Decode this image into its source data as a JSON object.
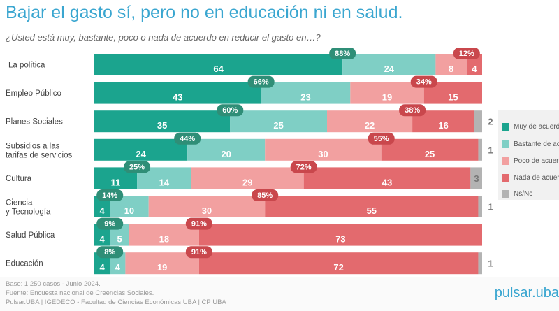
{
  "title": "Bajar el gasto sí, pero no en educación ni en salud.",
  "subtitle": "¿Usted está muy, bastante, poco o nada de acuerdo en reducir el gasto en…?",
  "chart_data": {
    "type": "bar",
    "orientation": "horizontal-stacked-100",
    "categories": [
      "La política",
      "Empleo Público",
      "Planes Sociales",
      "Subsidios a las tarifas de servicios",
      "Cultura",
      "Ciencia y Tecnología",
      "Salud Pública",
      "Educación"
    ],
    "series": [
      {
        "name": "Muy de acuerdo",
        "color": "#1ba48e",
        "values": [
          64,
          43,
          35,
          24,
          11,
          4,
          4,
          4
        ]
      },
      {
        "name": "Bastante de acuerdo",
        "color": "#7fcfc5",
        "values": [
          24,
          23,
          25,
          20,
          14,
          10,
          5,
          4
        ]
      },
      {
        "name": "Poco de acuerdo",
        "color": "#f2a0a0",
        "values": [
          8,
          19,
          22,
          30,
          29,
          30,
          18,
          19
        ]
      },
      {
        "name": "Nada de acuerdo",
        "color": "#e36a6e",
        "values": [
          4,
          15,
          16,
          25,
          43,
          55,
          73,
          72
        ]
      },
      {
        "name": "Ns/Nc",
        "color": "#b3b3b3",
        "values": [
          0,
          0,
          2,
          1,
          3,
          1,
          0,
          1
        ]
      }
    ],
    "ns_labels": [
      "",
      "",
      "2",
      "1",
      "3",
      "1",
      "",
      "1"
    ],
    "agree_totals": [
      "88%",
      "66%",
      "60%",
      "44%",
      "25%",
      "14%",
      "9%",
      "8%"
    ],
    "disagree_totals": [
      "12%",
      "34%",
      "38%",
      "55%",
      "72%",
      "85%",
      "91%",
      "91%"
    ],
    "agree_badge_color": "#2f8e77",
    "disagree_badge_color": "#c9474c",
    "xlim": [
      0,
      100
    ]
  },
  "legend": [
    "Muy de acuerdo",
    "Bastante de acuerdo",
    "Poco de acuerdo",
    "Nada de acuerdo",
    "Ns/Nc"
  ],
  "footer": [
    "Base: 1.250 casos - Junio 2024.",
    "Fuente: Encuesta nacional de Creencias Sociales.",
    "Pulsar.UBA | IGEDECO - Facultad de Ciencias Económicas UBA | CP UBA"
  ],
  "logo": "pulsar.uba"
}
